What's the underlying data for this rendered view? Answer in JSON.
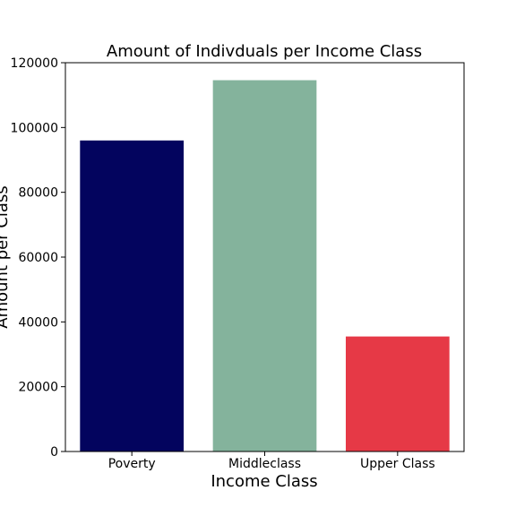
{
  "chart_data": {
    "type": "bar",
    "title": "Amount of Indivduals per Income Class",
    "xlabel": "Income Class",
    "ylabel": "Amount per Class",
    "categories": [
      "Poverty",
      "Middleclass",
      "Upper Class"
    ],
    "values": [
      96000,
      114600,
      35500
    ],
    "colors": [
      "#03045e",
      "#84b39c",
      "#e63946"
    ],
    "ylim": [
      0,
      120000
    ],
    "yticks": [
      0,
      20000,
      40000,
      60000,
      80000,
      100000,
      120000
    ],
    "ytick_labels": [
      "0",
      "20000",
      "40000",
      "60000",
      "80000",
      "100000",
      "120000"
    ],
    "grid": false,
    "legend": "none"
  }
}
